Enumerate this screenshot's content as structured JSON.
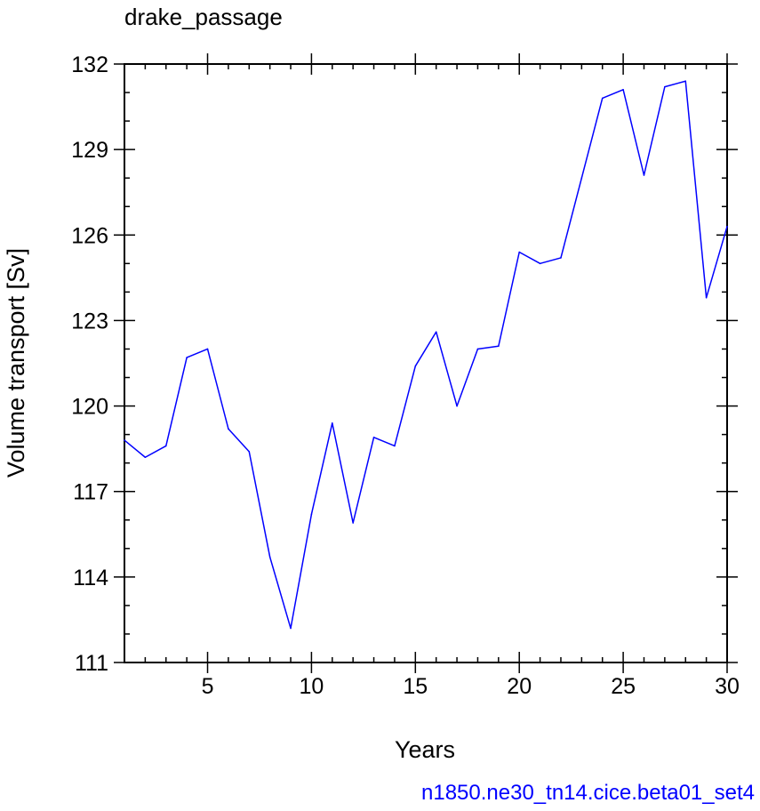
{
  "chart_data": {
    "type": "line",
    "title": "drake_passage",
    "xlabel": "Years",
    "ylabel": "Volume transport [Sv]",
    "xlim": [
      1,
      30
    ],
    "ylim": [
      111,
      132
    ],
    "xticks": [
      5,
      10,
      15,
      20,
      25,
      30
    ],
    "yticks": [
      111,
      114,
      117,
      120,
      123,
      126,
      129,
      132
    ],
    "x_minor_step": 1,
    "y_minor_step": 1,
    "grid": false,
    "legend": "none",
    "series": [
      {
        "color": "#0000ff",
        "x": [
          1,
          2,
          3,
          4,
          5,
          6,
          7,
          8,
          9,
          10,
          11,
          12,
          13,
          14,
          15,
          16,
          17,
          18,
          19,
          20,
          21,
          22,
          23,
          24,
          25,
          26,
          27,
          28,
          29,
          30
        ],
        "values": [
          118.8,
          118.2,
          118.6,
          121.7,
          122.0,
          119.2,
          118.4,
          114.7,
          112.2,
          116.2,
          119.4,
          115.9,
          118.9,
          118.6,
          121.4,
          122.6,
          120.0,
          122.0,
          122.1,
          125.4,
          125.0,
          125.2,
          128.0,
          130.8,
          131.1,
          128.1,
          131.2,
          131.4,
          123.8,
          126.3
        ]
      }
    ]
  },
  "footer": {
    "case_name": "n1850.ne30_tn14.cice.beta01_set4",
    "color": "#0000ff"
  }
}
